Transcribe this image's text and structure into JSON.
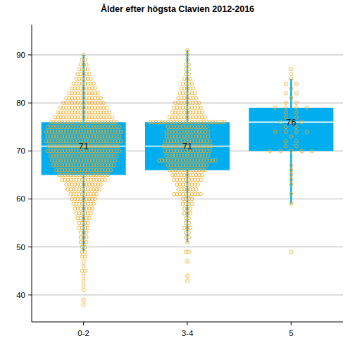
{
  "chart_data": {
    "type": "box",
    "title": "Ålder efter högsta Clavien 2012-2016",
    "categories": [
      "0-2",
      "3-4",
      "5"
    ],
    "color": "#00aeef",
    "data_labels": true,
    "grid": true,
    "ylim": [
      34.4,
      96.3
    ],
    "yticks": [
      40,
      50,
      60,
      70,
      80,
      90
    ],
    "boxes": [
      {
        "q1": 65,
        "median": 71,
        "q3": 76,
        "whisker_low": 49,
        "whisker_high": 90
      },
      {
        "q1": 66,
        "median": 71,
        "q3": 76,
        "whisker_low": 51,
        "whisker_high": 91
      },
      {
        "q1": 70,
        "median": 76,
        "q3": 79,
        "whisker_low": 59,
        "whisker_high": 85
      }
    ],
    "points": [
      {
        "color": "#f0a820",
        "marker": "circle",
        "ages": [
          90,
          89,
          88,
          87,
          86,
          85,
          84,
          83,
          82,
          81,
          80,
          79,
          78,
          77,
          76,
          75,
          74,
          73,
          72,
          71,
          70,
          69,
          68,
          67,
          66,
          65,
          64,
          63,
          62,
          61,
          60,
          59,
          58,
          57,
          56,
          55,
          54,
          53,
          52,
          51,
          50,
          49,
          48,
          47,
          46,
          45,
          44,
          43,
          42,
          41,
          39,
          38
        ],
        "counts": [
          1,
          2,
          3,
          4,
          5,
          6,
          8,
          9,
          11,
          13,
          15,
          17,
          19,
          21,
          24,
          26,
          27,
          26,
          27,
          25,
          26,
          24,
          23,
          22,
          20,
          18,
          16,
          13,
          12,
          10,
          9,
          8,
          7,
          6,
          5,
          4,
          4,
          3,
          3,
          3,
          2,
          2,
          2,
          1,
          1,
          2,
          1,
          1,
          1,
          1,
          1,
          1
        ]
      },
      {
        "color": "#f0a820",
        "marker": "circle",
        "ages": [
          91,
          90,
          89,
          88,
          87,
          86,
          85,
          84,
          83,
          82,
          81,
          80,
          79,
          78,
          77,
          76,
          75,
          74,
          73,
          72,
          71,
          70,
          69,
          68,
          67,
          66,
          65,
          64,
          63,
          62,
          61,
          60,
          59,
          58,
          57,
          56,
          55,
          54,
          53,
          52,
          51,
          49,
          47,
          44,
          43
        ],
        "counts": [
          1,
          1,
          1,
          2,
          2,
          2,
          3,
          4,
          5,
          6,
          7,
          9,
          10,
          11,
          13,
          26,
          14,
          15,
          15,
          16,
          17,
          16,
          15,
          20,
          14,
          13,
          11,
          10,
          8,
          7,
          10,
          4,
          4,
          3,
          3,
          2,
          2,
          3,
          2,
          2,
          1,
          2,
          1,
          1,
          1
        ]
      },
      {
        "color": "#f0a820",
        "marker": "circle",
        "ages": [
          87,
          86,
          85,
          84,
          83,
          82,
          81,
          80,
          79,
          78,
          77,
          76,
          75,
          74,
          73,
          72,
          71,
          70,
          67,
          66,
          65,
          64,
          63,
          61,
          59,
          49
        ],
        "counts": [
          1,
          1,
          1,
          2,
          1,
          2,
          1,
          2,
          4,
          2,
          2,
          3,
          2,
          4,
          1,
          2,
          2,
          5,
          1,
          1,
          1,
          1,
          1,
          1,
          1,
          1
        ]
      }
    ]
  }
}
